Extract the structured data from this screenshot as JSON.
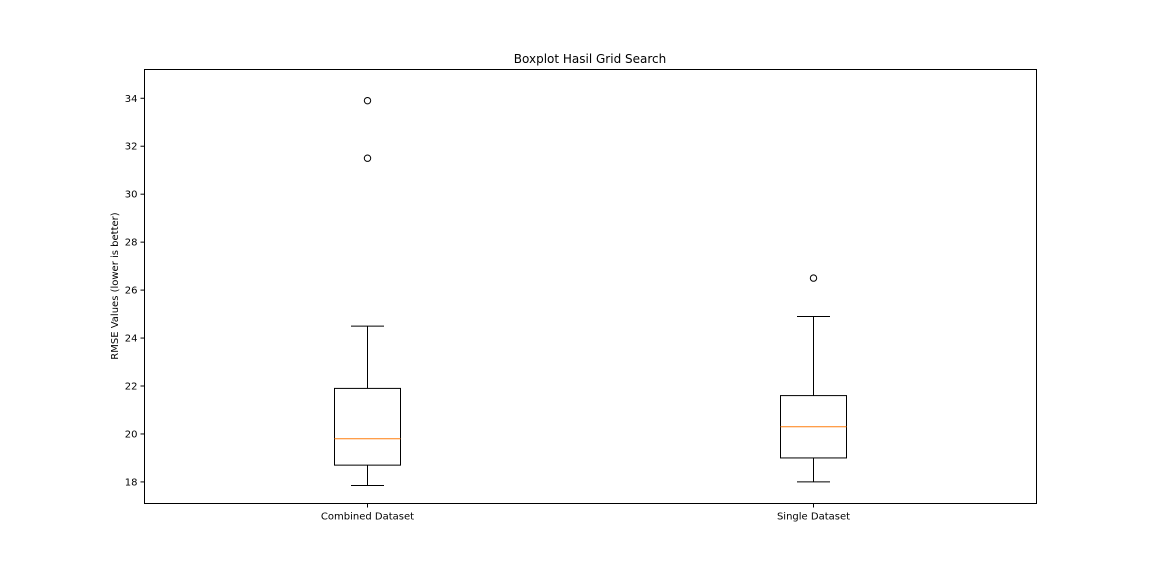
{
  "chart_data": {
    "type": "boxplot",
    "title": "Boxplot Hasil Grid Search",
    "xlabel": "",
    "ylabel": "RMSE Values (lower is better)",
    "ylim": [
      17.1,
      35.2
    ],
    "yticks": [
      18,
      20,
      22,
      24,
      26,
      28,
      30,
      32,
      34
    ],
    "grid": false,
    "categories": [
      "Combined Dataset",
      "Single Dataset"
    ],
    "boxes": [
      {
        "category": "Combined Dataset",
        "whisker_low": 17.85,
        "q1": 18.7,
        "median": 19.8,
        "q3": 21.9,
        "whisker_high": 24.5,
        "outliers": [
          31.5,
          33.9
        ]
      },
      {
        "category": "Single Dataset",
        "whisker_low": 18.0,
        "q1": 19.0,
        "median": 20.3,
        "q3": 21.6,
        "whisker_high": 24.9,
        "outliers": [
          26.5
        ]
      }
    ],
    "colors": {
      "box": "#000000",
      "median": "#ff7f0e",
      "outlier": "#000000"
    }
  }
}
